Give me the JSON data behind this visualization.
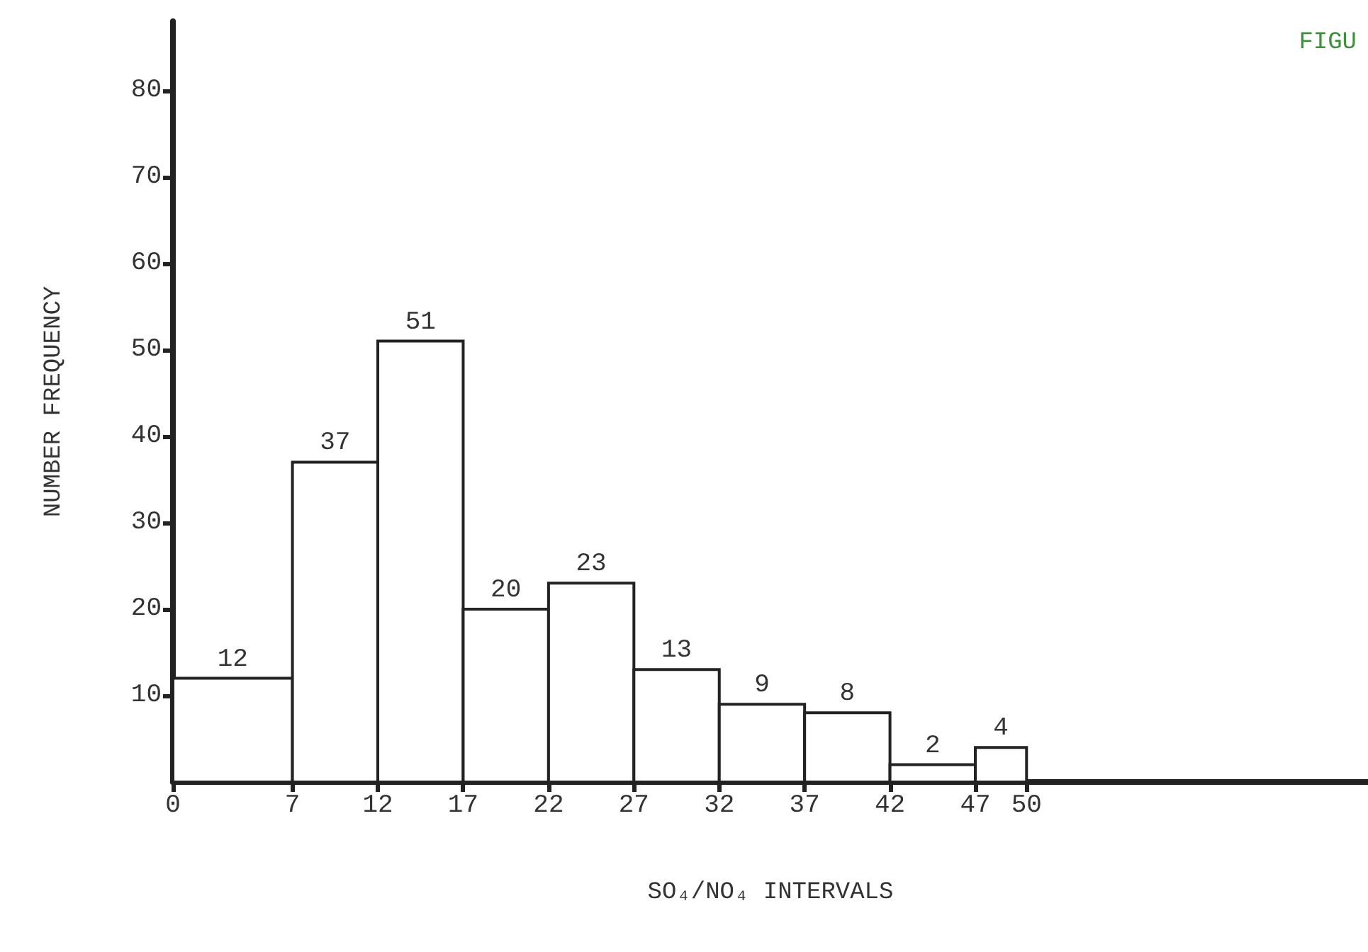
{
  "chart_data": {
    "type": "histogram",
    "xlabel": "SO₄/NO₄ INTERVALS",
    "ylabel": "NUMBER FREQUENCY",
    "annotations": [
      "FIGU"
    ],
    "bins": [
      0,
      7,
      12,
      17,
      22,
      27,
      32,
      37,
      42,
      47,
      50
    ],
    "values": [
      12,
      37,
      51,
      20,
      23,
      13,
      9,
      8,
      2,
      4
    ],
    "color": "#ffffff",
    "data_labels": true,
    "xlim": [
      0,
      70
    ],
    "xticks": [
      0,
      7,
      12,
      17,
      22,
      27,
      32,
      37,
      42,
      47,
      50
    ],
    "ylim": [
      0,
      88
    ],
    "yticks": [
      10,
      20,
      30,
      40,
      50,
      60,
      70,
      80
    ]
  }
}
